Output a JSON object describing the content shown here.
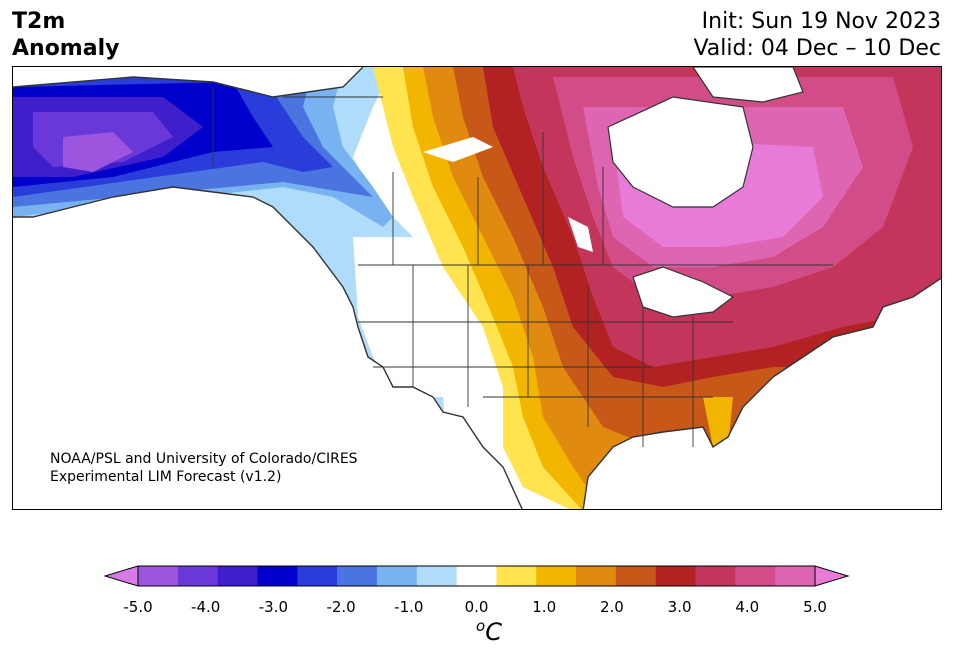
{
  "header": {
    "variable_line1": "T2m",
    "variable_line2": "Anomaly",
    "init": "Init: Sun 19 Nov 2023",
    "valid": "Valid: 04 Dec – 10 Dec"
  },
  "map": {
    "region": "North America",
    "credit_line1": "NOAA/PSL and University of Colorado/CIRES",
    "credit_line2": "Experimental LIM Forecast (v1.2)"
  },
  "colorbar": {
    "ticks": [
      "-5.0",
      "-4.0",
      "-3.0",
      "-2.0",
      "-1.0",
      "0.0",
      "1.0",
      "2.0",
      "3.0",
      "4.0",
      "5.0"
    ],
    "unit_base": "C",
    "unit_sup": "o",
    "colors": [
      "#d77ae6",
      "#9b55de",
      "#6a37d8",
      "#3f1fcc",
      "#0000cc",
      "#2a3ddb",
      "#4a74e0",
      "#79b2f0",
      "#b0dcfb",
      "#ffffff",
      "#ffe44f",
      "#f2b600",
      "#e08a10",
      "#c85818",
      "#b22222",
      "#c3355a",
      "#d24d87",
      "#de65b2",
      "#e87ad8"
    ]
  },
  "colors": {
    "background": "#ffffff",
    "border": "#000000",
    "coastline": "#333333"
  }
}
